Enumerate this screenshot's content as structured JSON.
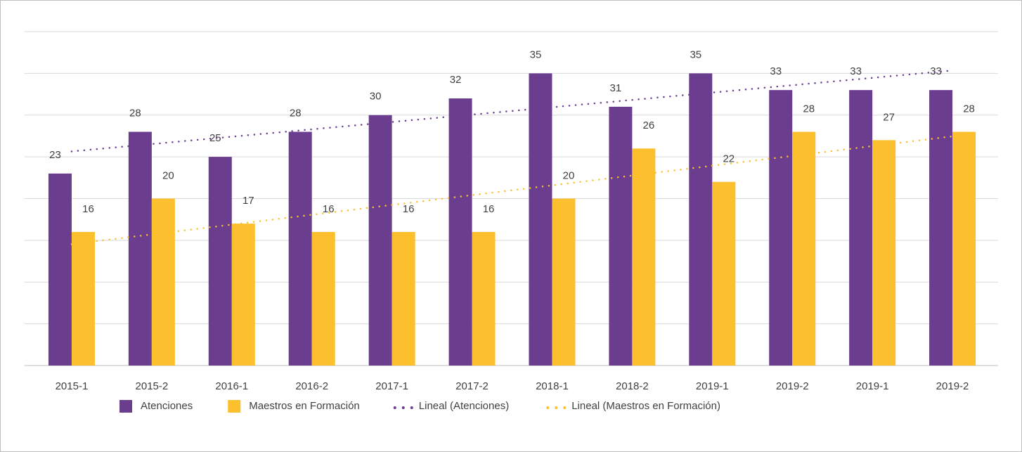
{
  "chart_data": {
    "type": "bar",
    "categories": [
      "2015-1",
      "2015-2",
      "2016-1",
      "2016-2",
      "2017-1",
      "2017-2",
      "2018-1",
      "2018-2",
      "2019-1",
      "2019-2",
      "2019-1",
      "2019-2"
    ],
    "series": [
      {
        "name": "Atenciones",
        "color": "#6b3d8e",
        "trendline": "Lineal (Atenciones)",
        "values": [
          23,
          28,
          25,
          28,
          30,
          32,
          35,
          31,
          35,
          33,
          33,
          33
        ]
      },
      {
        "name": "Maestros en Formación",
        "color": "#fcc02e",
        "trendline": "Lineal (Maestros en Formación)",
        "values": [
          16,
          20,
          17,
          16,
          16,
          16,
          20,
          26,
          22,
          28,
          27,
          28
        ]
      }
    ],
    "ylim": [
      0,
      40
    ],
    "yticks": [
      0,
      5,
      10,
      15,
      20,
      25,
      30,
      35,
      40
    ],
    "grid": true,
    "legend": "bottom"
  }
}
